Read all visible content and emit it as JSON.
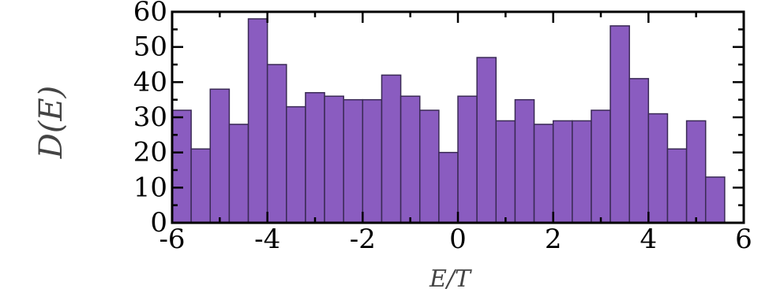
{
  "chart_data": {
    "type": "bar",
    "xlabel": "E/T",
    "ylabel": "D(E)",
    "xlim": [
      -6,
      6
    ],
    "ylim": [
      0,
      60
    ],
    "xticks": [
      "-6",
      "-4",
      "-2",
      "0",
      "2",
      "4",
      "6"
    ],
    "yticks": [
      "0",
      "10",
      "20",
      "30",
      "40",
      "50",
      "60"
    ],
    "bin_width": 0.4,
    "bin_starts": [
      -6.0,
      -5.6,
      -5.2,
      -4.8,
      -4.4,
      -4.0,
      -3.6,
      -3.2,
      -2.8,
      -2.4,
      -2.0,
      -1.6,
      -1.2,
      -0.8,
      -0.4,
      0.0,
      0.4,
      0.8,
      1.2,
      1.6,
      2.0,
      2.4,
      2.8,
      3.2,
      3.6,
      4.0,
      4.4,
      4.8,
      5.2
    ],
    "values": [
      32,
      21,
      38,
      28,
      58,
      45,
      33,
      37,
      36,
      35,
      35,
      42,
      36,
      32,
      20,
      36,
      47,
      29,
      35,
      28,
      29,
      29,
      32,
      56,
      41,
      31,
      21,
      29,
      13
    ],
    "grid": false,
    "colors": {
      "bar_fill": "#8a5cc0",
      "bar_stroke": "#3a2a55",
      "axis": "#000000"
    }
  }
}
